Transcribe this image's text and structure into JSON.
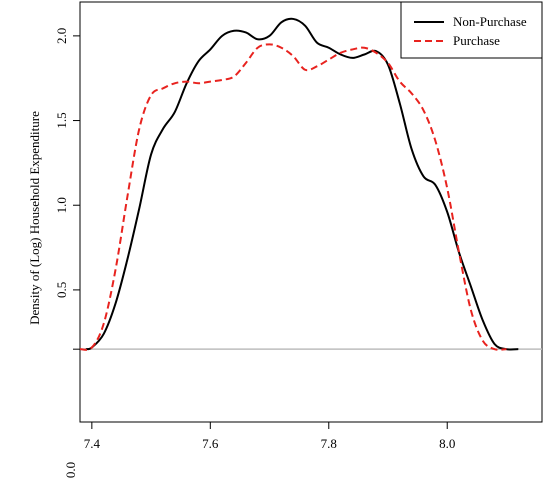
{
  "chart_data": {
    "type": "line",
    "title": "",
    "xlabel": "",
    "ylabel": "Density of (Log) Household Expenditure",
    "xlim": [
      7.38,
      8.16
    ],
    "ylim": [
      -0.28,
      2.2
    ],
    "y_baseline": 0.15,
    "grid": false,
    "legend_position": "top-right",
    "x_ticks": [
      {
        "value": 7.4,
        "label": "7.4"
      },
      {
        "value": 7.6,
        "label": "7.6"
      },
      {
        "value": 7.8,
        "label": "7.8"
      },
      {
        "value": 8.0,
        "label": "8.0"
      }
    ],
    "y_ticks": [
      {
        "value": 0.15,
        "label": ""
      },
      {
        "value": 0.5,
        "label": "0.5"
      },
      {
        "value": 1.0,
        "label": "1.0"
      },
      {
        "value": 1.5,
        "label": "1.5"
      },
      {
        "value": 2.0,
        "label": "2.0"
      }
    ],
    "y_floor_label": "0.0",
    "series": [
      {
        "name": "Non-Purchase",
        "color": "#000000",
        "dash": "solid",
        "x": [
          7.39,
          7.4,
          7.42,
          7.44,
          7.46,
          7.48,
          7.5,
          7.52,
          7.54,
          7.56,
          7.58,
          7.6,
          7.62,
          7.64,
          7.66,
          7.68,
          7.7,
          7.72,
          7.74,
          7.76,
          7.78,
          7.8,
          7.82,
          7.84,
          7.86,
          7.88,
          7.9,
          7.92,
          7.94,
          7.96,
          7.98,
          8.0,
          8.02,
          8.04,
          8.06,
          8.08,
          8.1,
          8.12
        ],
        "y": [
          0.15,
          0.16,
          0.24,
          0.42,
          0.68,
          0.98,
          1.3,
          1.45,
          1.55,
          1.72,
          1.85,
          1.92,
          2.0,
          2.03,
          2.02,
          1.98,
          2.0,
          2.08,
          2.1,
          2.06,
          1.96,
          1.93,
          1.89,
          1.87,
          1.89,
          1.91,
          1.83,
          1.6,
          1.33,
          1.17,
          1.12,
          0.96,
          0.72,
          0.52,
          0.32,
          0.18,
          0.15,
          0.15
        ]
      },
      {
        "name": "Purchase",
        "color": "#e8231f",
        "dash": "dashed",
        "x": [
          7.38,
          7.4,
          7.42,
          7.44,
          7.46,
          7.48,
          7.5,
          7.52,
          7.54,
          7.56,
          7.58,
          7.6,
          7.62,
          7.64,
          7.66,
          7.68,
          7.7,
          7.72,
          7.74,
          7.76,
          7.78,
          7.8,
          7.82,
          7.84,
          7.86,
          7.88,
          7.9,
          7.92,
          7.94,
          7.96,
          7.98,
          8.0,
          8.02,
          8.04,
          8.06,
          8.08,
          8.1
        ],
        "y": [
          0.15,
          0.16,
          0.3,
          0.62,
          1.05,
          1.45,
          1.65,
          1.69,
          1.72,
          1.73,
          1.72,
          1.73,
          1.74,
          1.76,
          1.84,
          1.93,
          1.95,
          1.93,
          1.88,
          1.8,
          1.82,
          1.86,
          1.9,
          1.92,
          1.93,
          1.9,
          1.84,
          1.73,
          1.66,
          1.56,
          1.38,
          1.1,
          0.72,
          0.38,
          0.2,
          0.15,
          0.15
        ]
      }
    ]
  }
}
